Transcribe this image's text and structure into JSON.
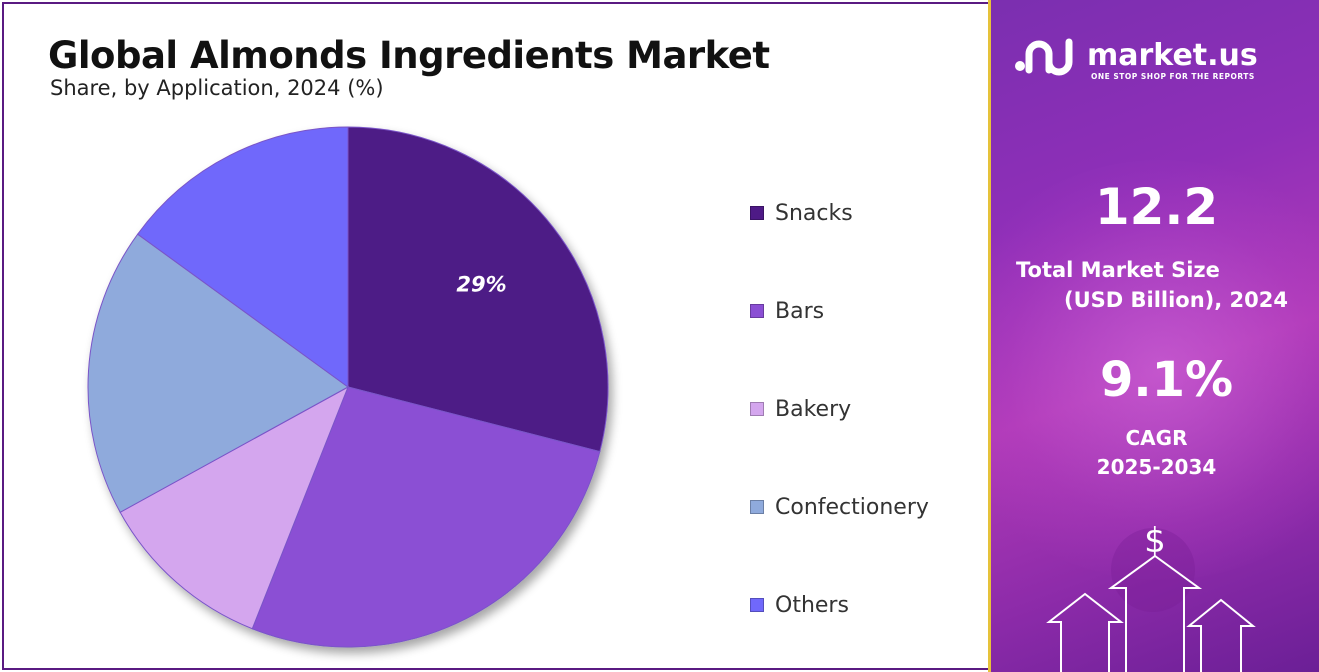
{
  "header": {
    "title": "Global Almonds Ingredients Market",
    "subtitle": "Share, by Application, 2024 (%)"
  },
  "chart_data": {
    "type": "pie",
    "categories": [
      "Snacks",
      "Bars",
      "Bakery",
      "Confectionery",
      "Others"
    ],
    "values": [
      29,
      27,
      11,
      18,
      15
    ],
    "colors": [
      "#4e1a86",
      "#8b4fd4",
      "#d4a6ee",
      "#8faadc",
      "#7068fb"
    ],
    "data_labels": [
      "29%",
      "",
      "",
      "",
      ""
    ],
    "legend_position": "right"
  },
  "legend": {
    "items": [
      {
        "label": "Snacks",
        "color": "#4e1a86"
      },
      {
        "label": "Bars",
        "color": "#8b4fd4"
      },
      {
        "label": "Bakery",
        "color": "#d4a6ee"
      },
      {
        "label": "Confectionery",
        "color": "#8faadc"
      },
      {
        "label": "Others",
        "color": "#7068fb"
      }
    ]
  },
  "sidebar": {
    "brand": "market.us",
    "tagline": "ONE STOP SHOP FOR THE REPORTS",
    "market_size_value": "12.2",
    "market_size_label_line1": "Total Market Size",
    "market_size_label_line2": "(USD Billion), 2024",
    "cagr_value": "9.1%",
    "cagr_label_line1": "CAGR",
    "cagr_label_line2": "2025-2034",
    "currency_symbol": "$"
  }
}
